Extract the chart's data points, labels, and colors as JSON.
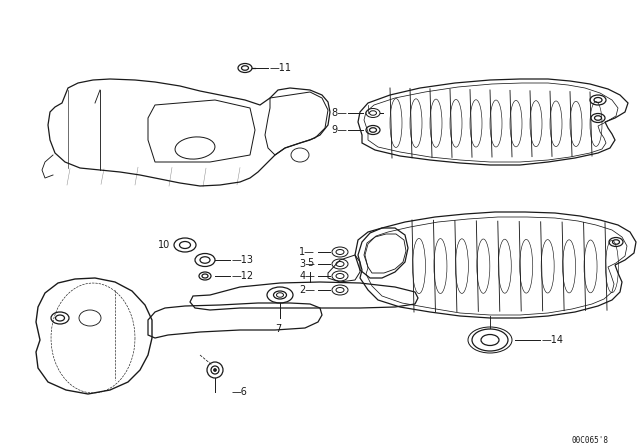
{
  "background_color": "#ffffff",
  "line_color": "#1a1a1a",
  "diagram_code": "00C065'8",
  "fig_width": 6.4,
  "fig_height": 4.48,
  "dpi": 100,
  "font_size": 7.0
}
